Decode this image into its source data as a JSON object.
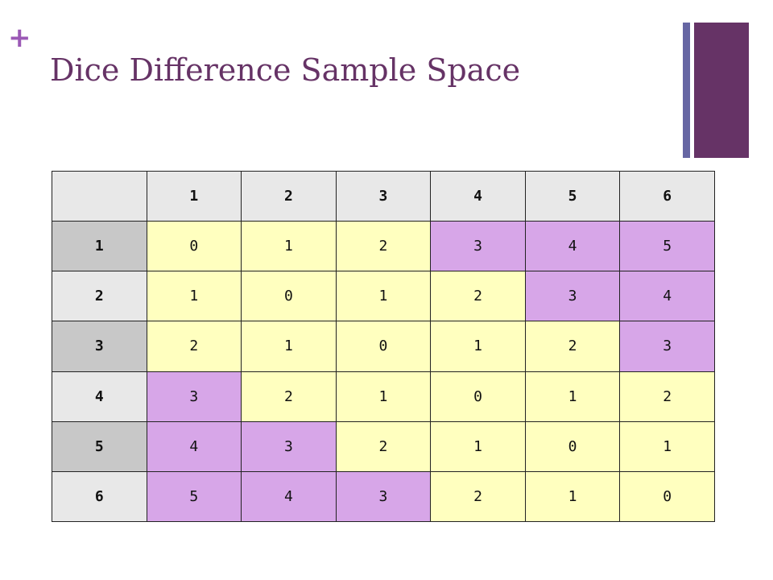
{
  "slide": {
    "plus": "+",
    "title": "Dice Difference Sample Space"
  },
  "colors": {
    "title": "#663366",
    "plus": "#9b59b6",
    "cell_small_difference": "#ffffbf",
    "cell_large_difference": "#d7a6e8",
    "header": "#e8e8e8",
    "row_header_dark": "#c8c8c8"
  },
  "table": {
    "column_headers": [
      "1",
      "2",
      "3",
      "4",
      "5",
      "6"
    ],
    "rows": [
      {
        "label": "1",
        "cells": [
          "0",
          "1",
          "2",
          "3",
          "4",
          "5"
        ]
      },
      {
        "label": "2",
        "cells": [
          "1",
          "0",
          "1",
          "2",
          "3",
          "4"
        ]
      },
      {
        "label": "3",
        "cells": [
          "2",
          "1",
          "0",
          "1",
          "2",
          "3"
        ]
      },
      {
        "label": "4",
        "cells": [
          "3",
          "2",
          "1",
          "0",
          "1",
          "2"
        ]
      },
      {
        "label": "5",
        "cells": [
          "4",
          "3",
          "2",
          "1",
          "0",
          "1"
        ]
      },
      {
        "label": "6",
        "cells": [
          "5",
          "4",
          "3",
          "2",
          "1",
          "0"
        ]
      }
    ]
  }
}
